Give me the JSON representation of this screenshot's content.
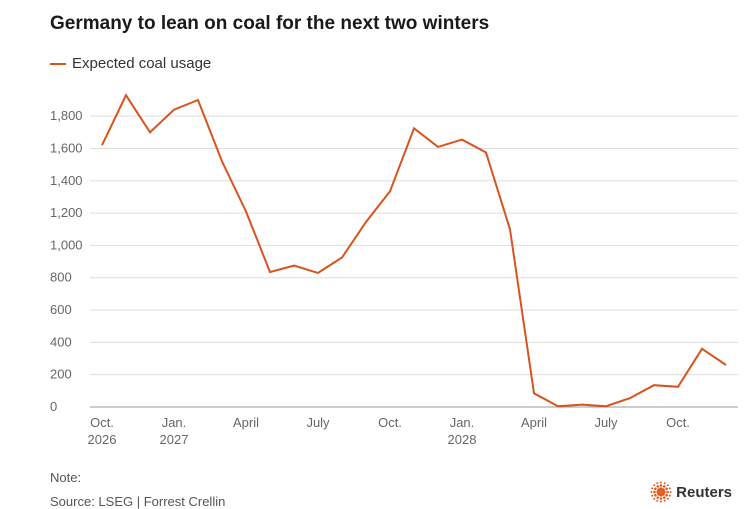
{
  "header": {
    "title": "Germany to lean on coal for the next two winters"
  },
  "footer": {
    "note": "Note:",
    "source": "Source: LSEG | Forrest Crellin",
    "brand": "Reuters"
  },
  "colors": {
    "series": "#d9531e",
    "grid": "#dddddd",
    "axis": "#999999",
    "logo": "#e35a1c"
  },
  "chart_data": {
    "type": "line",
    "title": "Germany to lean on coal for the next two winters",
    "xlabel": "",
    "ylabel": "",
    "ylim": [
      0,
      1900
    ],
    "yticks": [
      0,
      200,
      400,
      600,
      800,
      1000,
      1200,
      1400,
      1600,
      1800
    ],
    "ytick_labels": [
      "0",
      "200",
      "400",
      "600",
      "800",
      "1,000",
      "1,200",
      "1,400",
      "1,600",
      "1,800"
    ],
    "grid": true,
    "legend": "top-left",
    "x_categories": [
      "Oct 2026",
      "Nov 2026",
      "Dec 2026",
      "Jan 2027",
      "Feb 2027",
      "Mar 2027",
      "Apr 2027",
      "May 2027",
      "Jun 2027",
      "Jul 2027",
      "Aug 2027",
      "Sep 2027",
      "Oct 2027",
      "Nov 2027",
      "Dec 2027",
      "Jan 2028",
      "Feb 2028",
      "Mar 2028",
      "Apr 2028",
      "May 2028",
      "Jun 2028",
      "Jul 2028",
      "Aug 2028",
      "Sep 2028",
      "Oct 2028",
      "Nov 2028",
      "Dec 2028"
    ],
    "x_tick_labels": [
      {
        "index": 0,
        "line1": "Oct.",
        "line2": "2026"
      },
      {
        "index": 3,
        "line1": "Jan.",
        "line2": "2027"
      },
      {
        "index": 6,
        "line1": "April",
        "line2": ""
      },
      {
        "index": 9,
        "line1": "July",
        "line2": ""
      },
      {
        "index": 12,
        "line1": "Oct.",
        "line2": ""
      },
      {
        "index": 15,
        "line1": "Jan.",
        "line2": "2028"
      },
      {
        "index": 18,
        "line1": "April",
        "line2": ""
      },
      {
        "index": 21,
        "line1": "July",
        "line2": ""
      },
      {
        "index": 24,
        "line1": "Oct.",
        "line2": ""
      }
    ],
    "series": [
      {
        "name": "Expected coal usage",
        "values": [
          1620,
          1930,
          1700,
          1840,
          1900,
          1520,
          1210,
          835,
          875,
          830,
          925,
          1145,
          1335,
          1725,
          1610,
          1655,
          1575,
          1100,
          85,
          5,
          15,
          5,
          55,
          135,
          125,
          360,
          260
        ]
      }
    ]
  }
}
